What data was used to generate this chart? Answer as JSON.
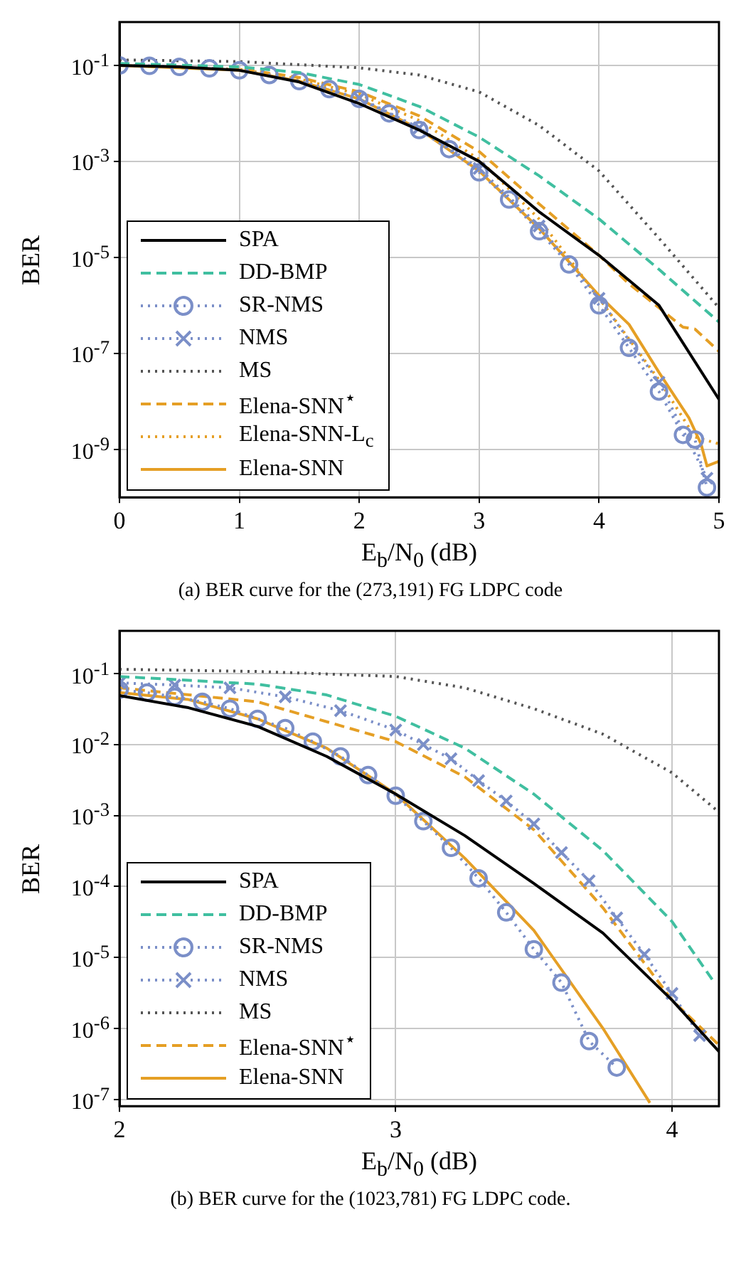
{
  "chart_data": [
    {
      "type": "line",
      "title": "(a) BER curve for the (273,191) FG LDPC code",
      "xlabel": "E$_{b}$/N$_{0}$ (dB)",
      "ylabel": "BER",
      "log": "y",
      "grid": true,
      "legend": "bottom left",
      "xlim": [
        0,
        5
      ],
      "xticks": [
        0,
        1,
        2,
        3,
        4,
        5
      ],
      "ylim": [
        1e-10,
        0.8
      ],
      "yticks": [
        {
          "value": 0.1,
          "label": "10$^{-1}$"
        },
        {
          "value": 0.001,
          "label": "10$^{-3}$"
        },
        {
          "value": 1e-05,
          "label": "10$^{-5}$"
        },
        {
          "value": 1e-07,
          "label": "10$^{-7}$"
        },
        {
          "value": 1e-09,
          "label": "10$^{-9}$"
        }
      ],
      "series": [
        {
          "name": "SPA",
          "color": "#000000",
          "line_style": "solid",
          "marker": "none",
          "x": [
            0,
            0.5,
            1,
            1.5,
            2,
            2.5,
            3,
            3.5,
            4,
            4.5,
            5
          ],
          "values": [
            0.1,
            0.093,
            0.079,
            0.045,
            0.016,
            0.0045,
            0.001,
            8.9e-05,
            1.1e-05,
            1e-06,
            1.1e-08
          ]
        },
        {
          "name": "DD-BMP",
          "color": "#40bfa0",
          "line_style": "dashed",
          "marker": "none",
          "x": [
            0,
            1,
            1.5,
            2,
            2.5,
            3,
            3.5,
            4,
            4.5,
            5
          ],
          "values": [
            0.11,
            0.093,
            0.071,
            0.04,
            0.014,
            0.0032,
            0.0005,
            6.3e-05,
            5.6e-06,
            4.5e-07
          ]
        },
        {
          "name": "SR-NMS",
          "color": "#7b8fc8",
          "line_style": "dotted",
          "marker": "circle",
          "x": [
            0,
            0.25,
            0.5,
            0.75,
            1,
            1.25,
            1.5,
            1.75,
            2,
            2.25,
            2.5,
            2.75,
            3,
            3.25,
            3.5,
            3.75,
            4,
            4.25,
            4.5,
            4.7,
            4.8,
            4.9
          ],
          "values": [
            0.1,
            0.098,
            0.093,
            0.087,
            0.079,
            0.063,
            0.047,
            0.032,
            0.02,
            0.01,
            0.0045,
            0.0018,
            0.00059,
            0.00016,
            3.5e-05,
            7.1e-06,
            1e-06,
            1.3e-07,
            1.6e-08,
            2e-09,
            1.6e-09,
            1.6e-10
          ]
        },
        {
          "name": "NMS",
          "color": "#7b8fc8",
          "line_style": "dotted",
          "marker": "cross",
          "x": [
            2,
            2.5,
            3,
            3.5,
            4,
            4.5,
            4.9
          ],
          "values": [
            0.021,
            0.005,
            0.00071,
            4.5e-05,
            1.4e-06,
            2.5e-08,
            2.5e-10
          ]
        },
        {
          "name": "MS",
          "color": "#555555",
          "line_style": "dotted",
          "marker": "none",
          "x": [
            0,
            1,
            2,
            2.5,
            3,
            3.5,
            4,
            4.5,
            5
          ],
          "values": [
            0.13,
            0.12,
            0.089,
            0.063,
            0.028,
            0.0056,
            0.00063,
            2.5e-05,
            8.9e-07
          ]
        },
        {
          "name": "Elena-SNN$^{⋆}$",
          "color": "#e59f25",
          "line_style": "dashed",
          "marker": "none",
          "x": [
            0,
            1,
            1.5,
            2,
            2.5,
            3,
            3.5,
            4,
            4.25,
            4.5,
            4.7,
            4.8,
            5
          ],
          "values": [
            0.1,
            0.085,
            0.056,
            0.028,
            0.0089,
            0.0016,
            0.00013,
            1.1e-05,
            2.8e-06,
            8.9e-07,
            3.5e-07,
            3.2e-07,
            1.1e-07
          ]
        },
        {
          "name": "Elena-SNN-L$_{c}$",
          "color": "#e59f25",
          "line_style": "dotted",
          "marker": "none",
          "x": [
            0,
            1,
            1.5,
            2,
            2.5,
            3,
            3.5,
            4,
            4.5,
            4.8,
            5
          ],
          "values": [
            0.1,
            0.083,
            0.052,
            0.025,
            0.0071,
            0.0011,
            6.3e-05,
            1.4e-06,
            2.8e-08,
            1.8e-09,
            1.3e-09
          ]
        },
        {
          "name": "Elena-SNN",
          "color": "#e59f25",
          "line_style": "solid",
          "marker": "none",
          "x": [
            0,
            1,
            1.5,
            2,
            2.5,
            3,
            3.5,
            4,
            4.25,
            4.5,
            4.75,
            4.85,
            4.9,
            5
          ],
          "values": [
            0.1,
            0.079,
            0.047,
            0.02,
            0.0047,
            0.00063,
            4e-05,
            1.6e-06,
            4e-07,
            4e-08,
            4.5e-09,
            1.3e-09,
            4.5e-10,
            5.6e-10
          ]
        }
      ]
    },
    {
      "type": "line",
      "title": "(b) BER curve for the (1023,781) FG LDPC code.",
      "xlabel": "E$_{b}$/N$_{0}$ (dB)",
      "ylabel": "BER",
      "log": "y",
      "grid": true,
      "legend": "bottom left",
      "xlim": [
        2,
        4.17
      ],
      "xticks": [
        2,
        3,
        4
      ],
      "ylim": [
        8e-08,
        0.4
      ],
      "yticks": [
        {
          "value": 0.1,
          "label": "10$^{-1}$"
        },
        {
          "value": 0.01,
          "label": "10$^{-2}$"
        },
        {
          "value": 0.001,
          "label": "10$^{-3}$"
        },
        {
          "value": 0.0001,
          "label": "10$^{-4}$"
        },
        {
          "value": 1e-05,
          "label": "10$^{-5}$"
        },
        {
          "value": 1e-06,
          "label": "10$^{-6}$"
        },
        {
          "value": 1e-07,
          "label": "10$^{-7}$"
        }
      ],
      "series": [
        {
          "name": "SPA",
          "color": "#000000",
          "line_style": "solid",
          "marker": "none",
          "x": [
            2,
            2.25,
            2.5,
            2.75,
            3,
            3.25,
            3.5,
            3.75,
            4,
            4.17
          ],
          "values": [
            0.049,
            0.033,
            0.018,
            0.0068,
            0.002,
            0.00052,
            0.00011,
            2.2e-05,
            2.5e-06,
            4.7e-07
          ]
        },
        {
          "name": "DD-BMP",
          "color": "#40bfa0",
          "line_style": "dashed",
          "marker": "none",
          "x": [
            2,
            2.5,
            2.75,
            3,
            3.25,
            3.5,
            3.75,
            4,
            4.15
          ],
          "values": [
            0.091,
            0.071,
            0.05,
            0.025,
            0.0089,
            0.002,
            0.00032,
            3.2e-05,
            4.6e-06
          ]
        },
        {
          "name": "SR-NMS",
          "color": "#7b8fc8",
          "line_style": "dotted",
          "marker": "circle",
          "x": [
            2,
            2.1,
            2.2,
            2.3,
            2.4,
            2.5,
            2.6,
            2.7,
            2.8,
            2.9,
            3,
            3.1,
            3.2,
            3.3,
            3.4,
            3.5,
            3.6,
            3.7,
            3.8
          ],
          "values": [
            0.059,
            0.054,
            0.047,
            0.04,
            0.032,
            0.023,
            0.017,
            0.011,
            0.0068,
            0.0037,
            0.0019,
            0.00083,
            0.00035,
            0.00013,
            4.3e-05,
            1.3e-05,
            4.4e-06,
            6.6e-07,
            2.8e-07
          ]
        },
        {
          "name": "NMS",
          "color": "#7b8fc8",
          "line_style": "dotted",
          "marker": "cross",
          "x": [
            2,
            2.2,
            2.4,
            2.6,
            2.8,
            3,
            3.1,
            3.2,
            3.3,
            3.4,
            3.5,
            3.6,
            3.7,
            3.8,
            3.9,
            4,
            4.1
          ],
          "values": [
            0.074,
            0.069,
            0.063,
            0.047,
            0.03,
            0.016,
            0.01,
            0.0063,
            0.0031,
            0.0016,
            0.00076,
            0.0003,
            0.00012,
            3.6e-05,
            1.1e-05,
            3.1e-06,
            7.9e-07
          ]
        },
        {
          "name": "MS",
          "color": "#555555",
          "line_style": "dotted",
          "marker": "none",
          "x": [
            2,
            2.5,
            3,
            3.25,
            3.5,
            3.75,
            4,
            4.16
          ],
          "values": [
            0.115,
            0.107,
            0.091,
            0.063,
            0.032,
            0.014,
            0.004,
            0.0012
          ]
        },
        {
          "name": "Elena-SNN$^{⋆}$",
          "color": "#e59f25",
          "line_style": "dashed",
          "marker": "none",
          "x": [
            2,
            2.5,
            3,
            3.25,
            3.5,
            3.75,
            4,
            4.17
          ],
          "values": [
            0.063,
            0.04,
            0.011,
            0.0035,
            0.00063,
            5e-05,
            2.5e-06,
            5.8e-07
          ]
        },
        {
          "name": "Elena-SNN",
          "color": "#e59f25",
          "line_style": "solid",
          "marker": "none",
          "x": [
            2,
            2.25,
            2.5,
            2.75,
            3,
            3.25,
            3.5,
            3.75,
            3.92
          ],
          "values": [
            0.054,
            0.043,
            0.023,
            0.0089,
            0.002,
            0.00025,
            2.4e-05,
            1e-06,
            8.9e-08
          ]
        }
      ]
    }
  ]
}
